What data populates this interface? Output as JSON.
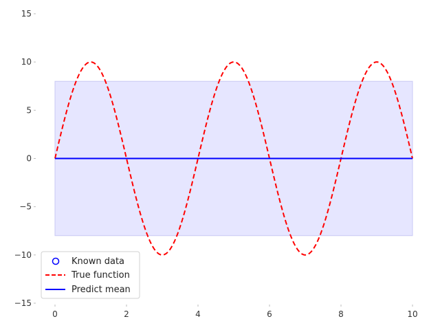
{
  "chart_data": {
    "type": "line",
    "title": "",
    "xlabel": "",
    "ylabel": "",
    "xlim": [
      -0.5,
      10.5
    ],
    "ylim": [
      -15,
      15
    ],
    "xticks": [
      0,
      2,
      4,
      6,
      8,
      10
    ],
    "xtick_labels": [
      "0",
      "2",
      "4",
      "6",
      "8",
      "10"
    ],
    "yticks": [
      15,
      10,
      5,
      0,
      -5,
      -10,
      -15
    ],
    "ytick_labels": [
      "15",
      "10",
      "5",
      "0",
      "−5",
      "−10",
      "−15"
    ],
    "grid": false,
    "legend_position": "lower-left",
    "series": [
      {
        "name": "Known data",
        "kind": "scatter",
        "marker": "open-circle",
        "color": "#0000ff",
        "x": [],
        "y": []
      },
      {
        "name": "True function",
        "kind": "line",
        "style": "dashed",
        "color": "#ff0000",
        "function": "10*sin(pi*x/2)",
        "x": [
          0,
          0.5,
          1,
          1.5,
          2,
          2.5,
          3,
          3.5,
          4,
          4.5,
          5,
          5.5,
          6,
          6.5,
          7,
          7.5,
          8,
          8.5,
          9,
          9.5,
          10
        ],
        "y": [
          0,
          7.07,
          10,
          7.07,
          0,
          -7.07,
          -10,
          -7.07,
          0,
          7.07,
          10,
          7.07,
          0,
          -7.07,
          -10,
          -7.07,
          0,
          7.07,
          10,
          7.07,
          0
        ]
      },
      {
        "name": "Predict mean",
        "kind": "line",
        "style": "solid",
        "color": "#0000ff",
        "x": [
          0,
          10
        ],
        "y": [
          0,
          0
        ]
      }
    ],
    "confidence_band": {
      "color": "#e6e6ff",
      "x": [
        0,
        10
      ],
      "lower": [
        -8,
        -8
      ],
      "upper": [
        8,
        8
      ]
    }
  }
}
